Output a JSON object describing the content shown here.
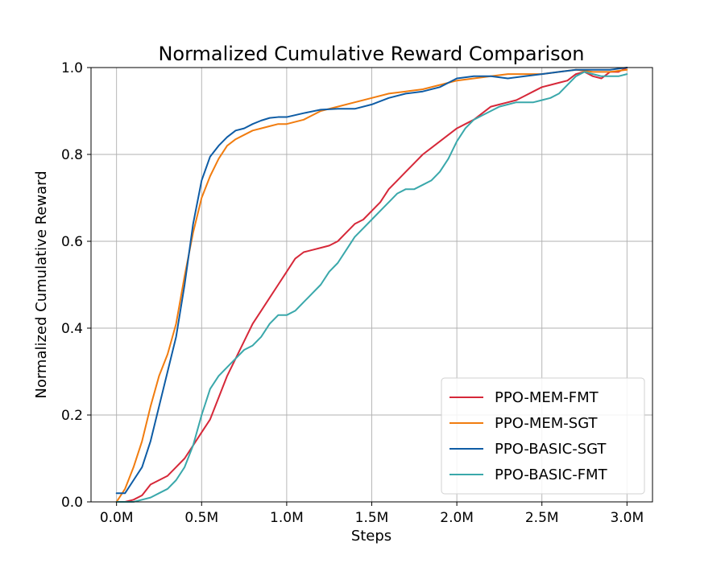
{
  "chart_data": {
    "type": "line",
    "title": "Normalized Cumulative Reward Comparison",
    "xlabel": "Steps",
    "ylabel": "Normalized Cumulative Reward",
    "xlim": [
      -0.15,
      3.15
    ],
    "ylim": [
      0.0,
      1.0
    ],
    "x_ticks": [
      0.0,
      0.5,
      1.0,
      1.5,
      2.0,
      2.5,
      3.0
    ],
    "x_tick_labels": [
      "0.0M",
      "0.5M",
      "1.0M",
      "1.5M",
      "2.0M",
      "2.5M",
      "3.0M"
    ],
    "y_ticks": [
      0.0,
      0.2,
      0.4,
      0.6,
      0.8,
      1.0
    ],
    "y_tick_labels": [
      "0.0",
      "0.2",
      "0.4",
      "0.6",
      "0.8",
      "1.0"
    ],
    "grid": true,
    "legend_position": "lower-right",
    "series": [
      {
        "name": "PPO-MEM-FMT",
        "color": "#d62839",
        "x": [
          0.0,
          0.05,
          0.1,
          0.15,
          0.2,
          0.25,
          0.3,
          0.35,
          0.4,
          0.45,
          0.5,
          0.55,
          0.6,
          0.65,
          0.7,
          0.75,
          0.8,
          0.85,
          0.9,
          0.95,
          1.0,
          1.05,
          1.1,
          1.15,
          1.2,
          1.25,
          1.3,
          1.35,
          1.4,
          1.45,
          1.5,
          1.55,
          1.6,
          1.65,
          1.7,
          1.75,
          1.8,
          1.85,
          1.9,
          1.95,
          2.0,
          2.05,
          2.1,
          2.15,
          2.2,
          2.25,
          2.3,
          2.35,
          2.4,
          2.45,
          2.5,
          2.55,
          2.6,
          2.65,
          2.7,
          2.75,
          2.8,
          2.85,
          2.9,
          2.95,
          3.0
        ],
        "y": [
          0.0,
          0.0,
          0.005,
          0.015,
          0.04,
          0.05,
          0.06,
          0.08,
          0.1,
          0.13,
          0.16,
          0.19,
          0.24,
          0.29,
          0.33,
          0.37,
          0.41,
          0.44,
          0.47,
          0.5,
          0.53,
          0.56,
          0.575,
          0.58,
          0.585,
          0.59,
          0.6,
          0.62,
          0.64,
          0.65,
          0.67,
          0.69,
          0.72,
          0.74,
          0.76,
          0.78,
          0.8,
          0.815,
          0.83,
          0.845,
          0.86,
          0.87,
          0.88,
          0.895,
          0.91,
          0.915,
          0.92,
          0.925,
          0.935,
          0.945,
          0.955,
          0.96,
          0.965,
          0.97,
          0.985,
          0.99,
          0.98,
          0.975,
          0.99,
          0.99,
          1.0
        ]
      },
      {
        "name": "PPO-MEM-SGT",
        "color": "#f17c0f",
        "x": [
          0.0,
          0.05,
          0.1,
          0.15,
          0.2,
          0.25,
          0.3,
          0.35,
          0.4,
          0.45,
          0.5,
          0.55,
          0.6,
          0.65,
          0.7,
          0.75,
          0.8,
          0.85,
          0.9,
          0.95,
          1.0,
          1.1,
          1.2,
          1.3,
          1.4,
          1.5,
          1.6,
          1.7,
          1.8,
          1.9,
          2.0,
          2.1,
          2.2,
          2.3,
          2.4,
          2.5,
          2.6,
          2.7,
          2.8,
          2.9,
          3.0
        ],
        "y": [
          0.0,
          0.03,
          0.08,
          0.14,
          0.22,
          0.29,
          0.34,
          0.41,
          0.52,
          0.62,
          0.7,
          0.75,
          0.79,
          0.82,
          0.835,
          0.845,
          0.855,
          0.86,
          0.865,
          0.87,
          0.87,
          0.88,
          0.9,
          0.91,
          0.92,
          0.93,
          0.94,
          0.945,
          0.95,
          0.96,
          0.97,
          0.975,
          0.98,
          0.985,
          0.985,
          0.985,
          0.99,
          0.995,
          0.99,
          0.99,
          0.995
        ]
      },
      {
        "name": "PPO-BASIC-SGT",
        "color": "#0e5ca5",
        "x": [
          0.0,
          0.05,
          0.1,
          0.15,
          0.2,
          0.25,
          0.3,
          0.35,
          0.4,
          0.45,
          0.5,
          0.55,
          0.6,
          0.65,
          0.7,
          0.75,
          0.8,
          0.85,
          0.9,
          0.95,
          1.0,
          1.1,
          1.2,
          1.3,
          1.4,
          1.5,
          1.6,
          1.7,
          1.8,
          1.9,
          2.0,
          2.1,
          2.2,
          2.3,
          2.4,
          2.5,
          2.6,
          2.7,
          2.8,
          2.9,
          3.0
        ],
        "y": [
          0.02,
          0.02,
          0.05,
          0.08,
          0.14,
          0.22,
          0.3,
          0.38,
          0.5,
          0.64,
          0.74,
          0.795,
          0.82,
          0.84,
          0.855,
          0.86,
          0.87,
          0.878,
          0.884,
          0.886,
          0.886,
          0.895,
          0.903,
          0.905,
          0.905,
          0.915,
          0.93,
          0.94,
          0.945,
          0.955,
          0.975,
          0.98,
          0.98,
          0.975,
          0.98,
          0.985,
          0.99,
          0.995,
          0.995,
          0.995,
          1.0
        ]
      },
      {
        "name": "PPO-BASIC-FMT",
        "color": "#3aa8ab",
        "x": [
          0.0,
          0.05,
          0.1,
          0.15,
          0.2,
          0.25,
          0.3,
          0.35,
          0.4,
          0.45,
          0.5,
          0.55,
          0.6,
          0.65,
          0.7,
          0.75,
          0.8,
          0.85,
          0.9,
          0.95,
          1.0,
          1.05,
          1.1,
          1.15,
          1.2,
          1.25,
          1.3,
          1.35,
          1.4,
          1.45,
          1.5,
          1.55,
          1.6,
          1.65,
          1.7,
          1.75,
          1.8,
          1.85,
          1.9,
          1.95,
          2.0,
          2.05,
          2.1,
          2.15,
          2.2,
          2.25,
          2.3,
          2.35,
          2.4,
          2.45,
          2.5,
          2.55,
          2.6,
          2.65,
          2.7,
          2.75,
          2.8,
          2.85,
          2.9,
          2.95,
          3.0
        ],
        "y": [
          0.0,
          0.0,
          0.0,
          0.005,
          0.01,
          0.02,
          0.03,
          0.05,
          0.08,
          0.13,
          0.2,
          0.26,
          0.29,
          0.31,
          0.33,
          0.35,
          0.36,
          0.38,
          0.41,
          0.43,
          0.43,
          0.44,
          0.46,
          0.48,
          0.5,
          0.53,
          0.55,
          0.58,
          0.61,
          0.63,
          0.65,
          0.67,
          0.69,
          0.71,
          0.72,
          0.72,
          0.73,
          0.74,
          0.76,
          0.79,
          0.83,
          0.86,
          0.88,
          0.89,
          0.9,
          0.91,
          0.915,
          0.92,
          0.92,
          0.92,
          0.925,
          0.93,
          0.94,
          0.96,
          0.98,
          0.99,
          0.985,
          0.98,
          0.98,
          0.98,
          0.985
        ]
      }
    ]
  }
}
